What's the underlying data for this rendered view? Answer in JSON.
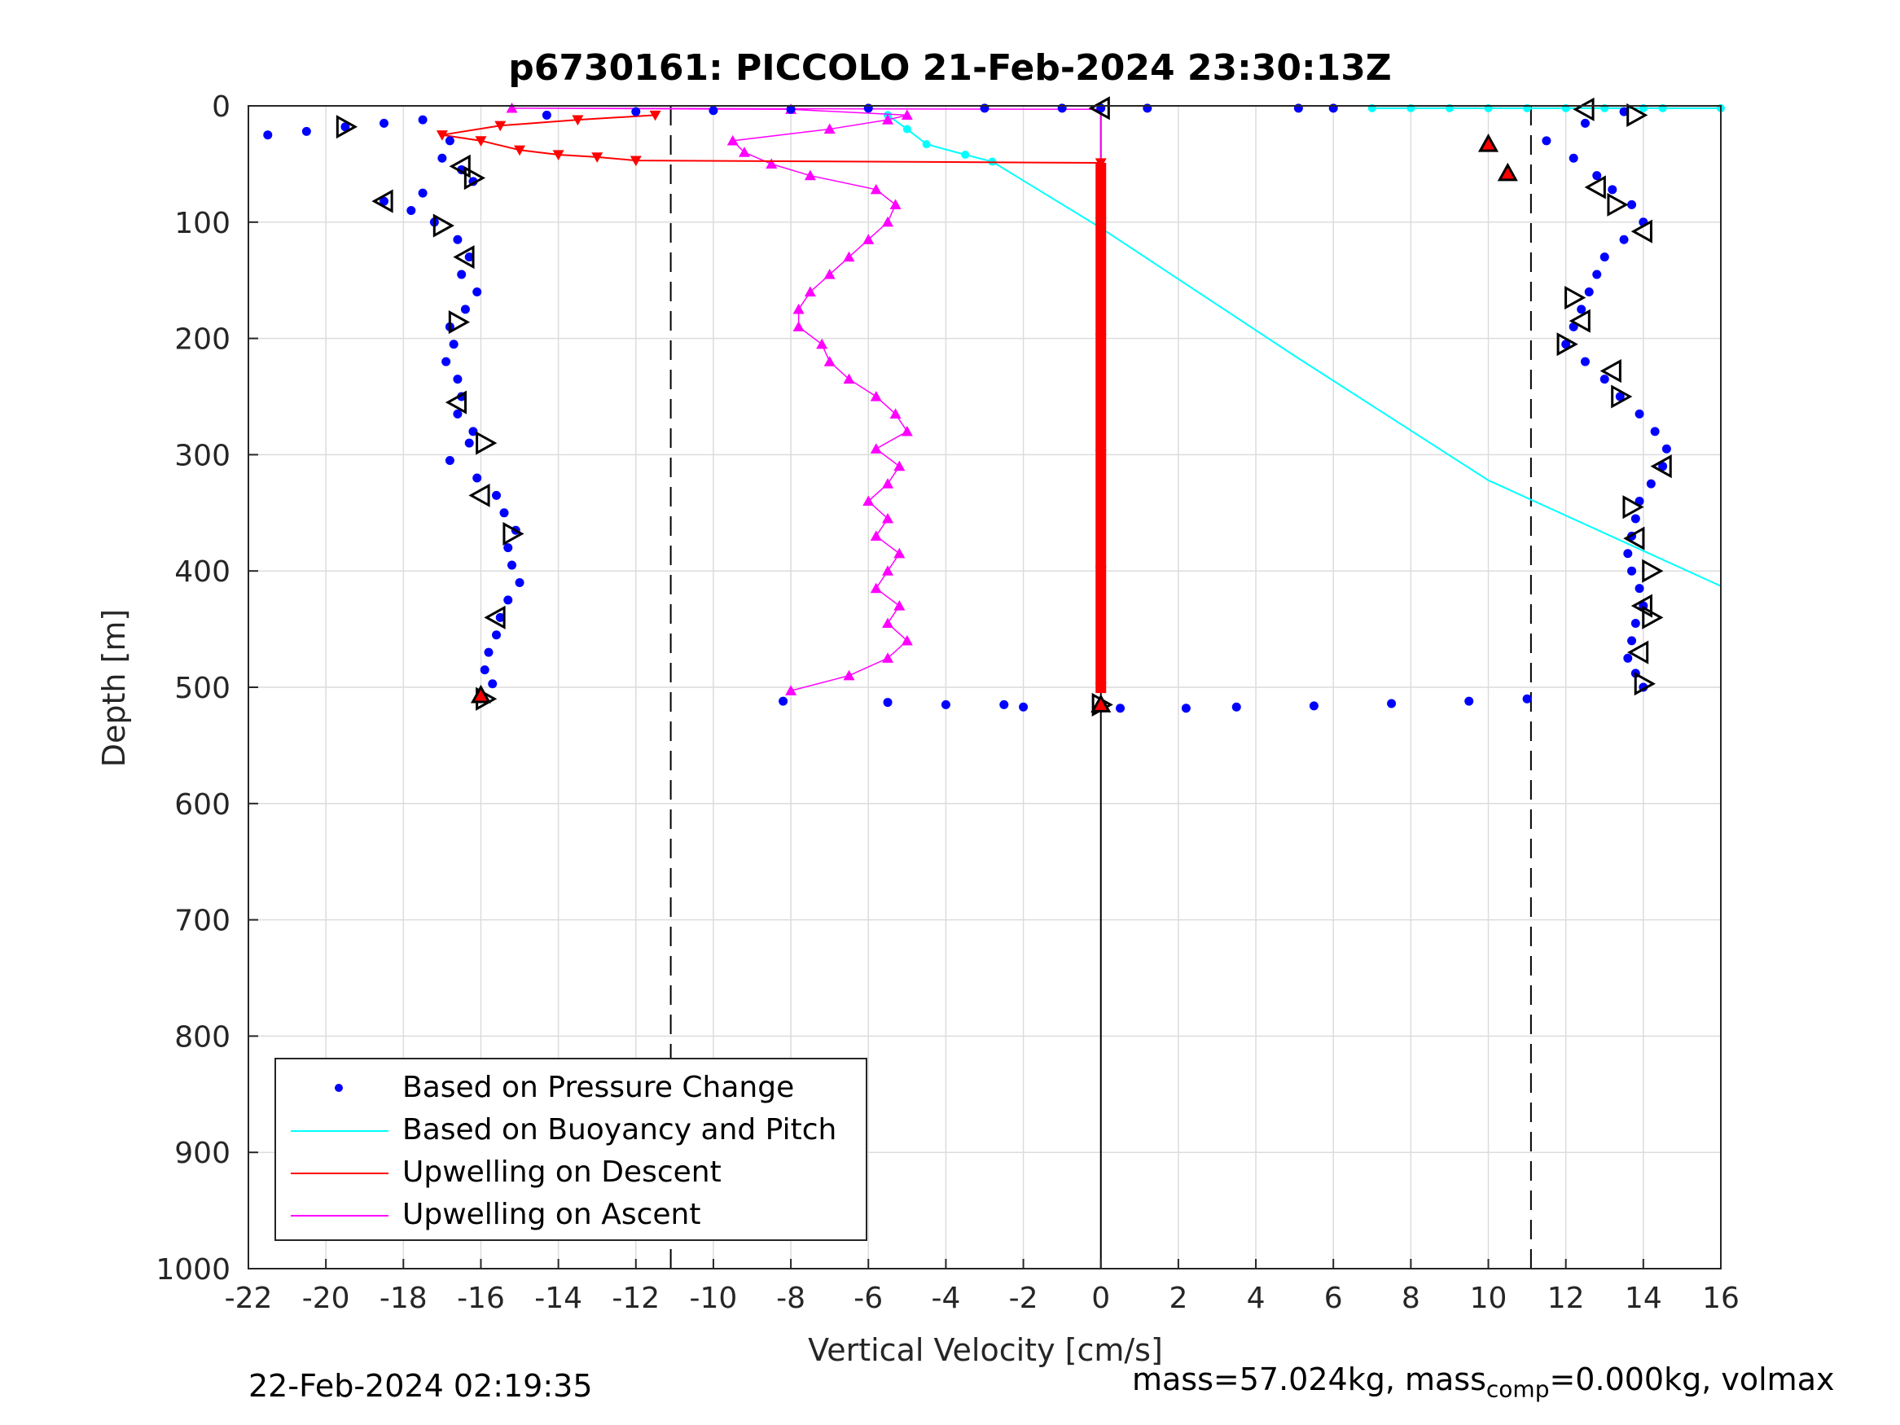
{
  "chart_data": {
    "type": "scatter",
    "title": "p6730161: PICCOLO 21-Feb-2024 23:30:13Z",
    "xlabel": "Vertical Velocity [cm/s]",
    "ylabel": "Depth [m]",
    "xlim": [
      -22,
      16
    ],
    "ylim": [
      0,
      1000
    ],
    "y_reversed": true,
    "grid": true,
    "x_ticks": [
      -22,
      -20,
      -18,
      -16,
      -14,
      -12,
      -10,
      -8,
      -6,
      -4,
      -2,
      0,
      2,
      4,
      6,
      8,
      10,
      12,
      14,
      16
    ],
    "y_ticks": [
      0,
      100,
      200,
      300,
      400,
      500,
      600,
      700,
      800,
      900,
      1000
    ],
    "reference_lines": [
      {
        "x": -11.1,
        "style": "dashed",
        "color": "#000000"
      },
      {
        "x": 11.1,
        "style": "dashed",
        "color": "#000000"
      },
      {
        "x": 0,
        "style": "solid",
        "color": "#000000"
      }
    ],
    "legend_position": "bottom-left",
    "series": [
      {
        "name": "Based on Pressure Change",
        "style": "dots",
        "color": "#0000ff",
        "segments": [
          {
            "label": "descent",
            "points": [
              [
                -21.5,
                25
              ],
              [
                -20.5,
                22
              ],
              [
                -19.5,
                18
              ],
              [
                -18.5,
                15
              ],
              [
                -17.5,
                12
              ],
              [
                -16.8,
                30
              ],
              [
                -17,
                45
              ],
              [
                -16.5,
                55
              ],
              [
                -16.2,
                65
              ],
              [
                -17.5,
                75
              ],
              [
                -18.5,
                82
              ],
              [
                -17.8,
                90
              ],
              [
                -17.2,
                100
              ],
              [
                -16.6,
                115
              ],
              [
                -16.3,
                130
              ],
              [
                -16.5,
                145
              ],
              [
                -16.1,
                160
              ],
              [
                -16.4,
                175
              ],
              [
                -16.8,
                190
              ],
              [
                -16.7,
                205
              ],
              [
                -16.9,
                220
              ],
              [
                -16.6,
                235
              ],
              [
                -16.5,
                250
              ],
              [
                -16.6,
                265
              ],
              [
                -16.2,
                280
              ],
              [
                -16.3,
                290
              ],
              [
                -16.8,
                305
              ],
              [
                -16.1,
                320
              ],
              [
                -15.6,
                335
              ],
              [
                -15.4,
                350
              ],
              [
                -15.1,
                365
              ],
              [
                -15.3,
                380
              ],
              [
                -15.2,
                395
              ],
              [
                -15.0,
                410
              ],
              [
                -15.3,
                425
              ],
              [
                -15.5,
                440
              ],
              [
                -15.6,
                455
              ],
              [
                -15.8,
                470
              ],
              [
                -15.9,
                485
              ],
              [
                -15.7,
                497
              ],
              [
                -16.0,
                507
              ]
            ]
          },
          {
            "label": "ascent",
            "points": [
              [
                14.0,
                500
              ],
              [
                13.8,
                488
              ],
              [
                13.6,
                475
              ],
              [
                13.7,
                460
              ],
              [
                13.8,
                445
              ],
              [
                14.0,
                430
              ],
              [
                13.9,
                415
              ],
              [
                13.7,
                400
              ],
              [
                13.6,
                385
              ],
              [
                13.7,
                370
              ],
              [
                13.8,
                355
              ],
              [
                13.9,
                340
              ],
              [
                14.2,
                325
              ],
              [
                14.5,
                310
              ],
              [
                14.6,
                295
              ],
              [
                14.3,
                280
              ],
              [
                13.9,
                265
              ],
              [
                13.4,
                250
              ],
              [
                13.0,
                235
              ],
              [
                12.5,
                220
              ],
              [
                12.0,
                205
              ],
              [
                12.2,
                190
              ],
              [
                12.4,
                175
              ],
              [
                12.6,
                160
              ],
              [
                12.8,
                145
              ],
              [
                13.0,
                130
              ],
              [
                13.5,
                115
              ],
              [
                14.0,
                100
              ],
              [
                13.7,
                85
              ],
              [
                13.2,
                72
              ],
              [
                12.8,
                60
              ],
              [
                12.2,
                45
              ],
              [
                11.5,
                30
              ],
              [
                12.5,
                15
              ],
              [
                13.5,
                5
              ]
            ]
          },
          {
            "label": "bottom",
            "points": [
              [
                -8.2,
                512
              ],
              [
                -5.5,
                513
              ],
              [
                -4.0,
                515
              ],
              [
                -2.5,
                515
              ],
              [
                -2,
                517
              ],
              [
                0.5,
                518
              ],
              [
                2.2,
                518
              ],
              [
                3.5,
                517
              ],
              [
                5.5,
                516
              ],
              [
                7.5,
                514
              ],
              [
                9.5,
                512
              ],
              [
                11.0,
                510
              ]
            ]
          },
          {
            "label": "surface",
            "points": [
              [
                -14.3,
                8
              ],
              [
                -12,
                5
              ],
              [
                -10,
                4
              ],
              [
                -8,
                3
              ],
              [
                -6,
                2
              ],
              [
                -3,
                2
              ],
              [
                -1,
                2
              ],
              [
                0,
                2
              ],
              [
                1.2,
                2
              ],
              [
                5.1,
                2
              ],
              [
                6,
                2
              ]
            ]
          }
        ]
      },
      {
        "name": "Based on Buoyancy and Pitch",
        "style": "line",
        "color": "#00ffff",
        "points": [
          [
            -5.5,
            8
          ],
          [
            -5.0,
            20
          ],
          [
            -4.5,
            33
          ],
          [
            -3.5,
            42
          ],
          [
            -2.8,
            48
          ],
          [
            0,
            105
          ],
          [
            5,
            215
          ],
          [
            10,
            322
          ],
          [
            16,
            413
          ]
        ],
        "surface_points": [
          [
            7,
            2
          ],
          [
            8,
            2
          ],
          [
            9,
            2
          ],
          [
            10,
            2
          ],
          [
            11,
            2
          ],
          [
            12,
            2
          ],
          [
            13,
            2
          ],
          [
            14,
            2
          ],
          [
            14.5,
            2
          ],
          [
            16,
            2
          ]
        ]
      },
      {
        "name": "Upwelling on Descent",
        "style": "line-triangle-down",
        "color": "#ff0000",
        "points": [
          [
            -11.5,
            8
          ],
          [
            -13.5,
            12
          ],
          [
            -15.5,
            17
          ],
          [
            -17.0,
            25
          ],
          [
            -16,
            30
          ],
          [
            -15,
            38
          ],
          [
            -14,
            42
          ],
          [
            -13,
            44
          ],
          [
            -12,
            47
          ],
          [
            0,
            49
          ],
          [
            0,
            100
          ],
          [
            0,
            200
          ],
          [
            0,
            300
          ],
          [
            0,
            400
          ],
          [
            0,
            500
          ]
        ]
      },
      {
        "name": "Upwelling on Ascent",
        "style": "line-triangle-up",
        "color": "#ff00ff",
        "points": [
          [
            -8.0,
            503
          ],
          [
            -6.5,
            490
          ],
          [
            -5.5,
            475
          ],
          [
            -5.0,
            460
          ],
          [
            -5.5,
            445
          ],
          [
            -5.2,
            430
          ],
          [
            -5.8,
            415
          ],
          [
            -5.5,
            400
          ],
          [
            -5.2,
            385
          ],
          [
            -5.8,
            370
          ],
          [
            -5.5,
            355
          ],
          [
            -6.0,
            340
          ],
          [
            -5.5,
            325
          ],
          [
            -5.2,
            310
          ],
          [
            -5.8,
            295
          ],
          [
            -5.0,
            280
          ],
          [
            -5.3,
            265
          ],
          [
            -5.8,
            250
          ],
          [
            -6.5,
            235
          ],
          [
            -7.0,
            220
          ],
          [
            -7.2,
            205
          ],
          [
            -7.8,
            190
          ],
          [
            -7.8,
            175
          ],
          [
            -7.5,
            160
          ],
          [
            -7.0,
            145
          ],
          [
            -6.5,
            130
          ],
          [
            -6.0,
            115
          ],
          [
            -5.5,
            100
          ],
          [
            -5.3,
            85
          ],
          [
            -5.8,
            72
          ],
          [
            -7.5,
            60
          ],
          [
            -8.5,
            50
          ],
          [
            -9.2,
            40
          ],
          [
            -9.5,
            30
          ],
          [
            -7.0,
            20
          ],
          [
            -5.5,
            12
          ],
          [
            -5.0,
            8
          ],
          [
            -8.0,
            3
          ],
          [
            -15.2,
            2
          ],
          [
            0,
            3
          ],
          [
            0,
            505
          ]
        ]
      }
    ],
    "markers": {
      "open_triangles": [
        [
          -19.5,
          18
        ],
        [
          -16.5,
          52
        ],
        [
          -16.2,
          62
        ],
        [
          -18.5,
          82
        ],
        [
          -17.0,
          103
        ],
        [
          -16.4,
          130
        ],
        [
          -16.6,
          186
        ],
        [
          -16.6,
          255
        ],
        [
          -15.9,
          290
        ],
        [
          -16.0,
          335
        ],
        [
          -15.2,
          368
        ],
        [
          -15.6,
          440
        ],
        [
          -15.9,
          510
        ],
        [
          12.5,
          3
        ],
        [
          13.8,
          8
        ],
        [
          12.8,
          70
        ],
        [
          13.3,
          85
        ],
        [
          14.0,
          108
        ],
        [
          12.2,
          165
        ],
        [
          12.4,
          185
        ],
        [
          12.0,
          205
        ],
        [
          13.2,
          228
        ],
        [
          13.4,
          250
        ],
        [
          14.5,
          310
        ],
        [
          13.7,
          345
        ],
        [
          13.8,
          372
        ],
        [
          14.2,
          400
        ],
        [
          14.0,
          430
        ],
        [
          14.2,
          440
        ],
        [
          13.9,
          470
        ],
        [
          14.0,
          497
        ],
        [
          0,
          2
        ],
        [
          0,
          515
        ]
      ],
      "red_filled_triangles": [
        [
          -16.0,
          507
        ],
        [
          10.0,
          33
        ],
        [
          10.5,
          58
        ],
        [
          0,
          515
        ]
      ]
    },
    "footer_left": "22-Feb-2024 02:19:35",
    "footer_right_prefix": "mass=57.024kg, mass",
    "footer_right_sub": "comp",
    "footer_right_suffix": "=0.000kg, volmax"
  }
}
